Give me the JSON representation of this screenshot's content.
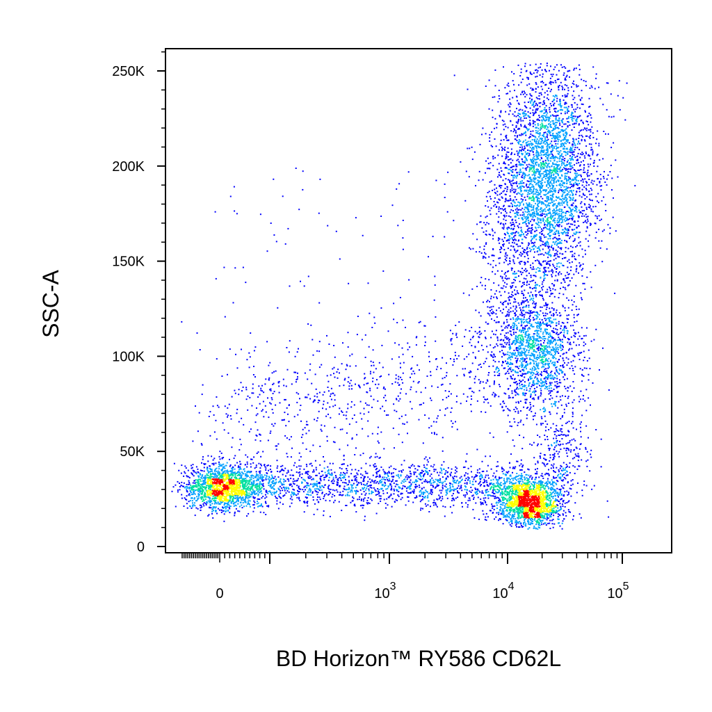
{
  "chart_data": {
    "type": "scatter",
    "subtype": "flow-cytometry-density-dot-plot",
    "xlabel": "BD Horizon™ RY586 CD62L",
    "ylabel": "SSC-A",
    "x_scale": "biexponential",
    "x_range": [
      -200,
      140000
    ],
    "y_range": [
      -5000,
      262144
    ],
    "x_ticks": [
      {
        "value": 0,
        "base": "0",
        "exp": ""
      },
      {
        "value": 1000,
        "base": "10",
        "exp": "3"
      },
      {
        "value": 10000,
        "base": "10",
        "exp": "4"
      },
      {
        "value": 100000,
        "base": "10",
        "exp": "5"
      }
    ],
    "y_ticks": [
      {
        "value": 0,
        "label": "0"
      },
      {
        "value": 50000,
        "label": "50K"
      },
      {
        "value": 100000,
        "label": "100K"
      },
      {
        "value": 150000,
        "label": "150K"
      },
      {
        "value": 200000,
        "label": "200K"
      },
      {
        "value": 250000,
        "label": "250K"
      }
    ],
    "populations": [
      {
        "description": "CD62L-negative low SSC",
        "x_center": 0,
        "y_center": 33000,
        "density": "high"
      },
      {
        "description": "low SSC band",
        "x_center": 1000,
        "y_center": 35000,
        "density": "medium"
      },
      {
        "description": "CD62L-positive low SSC",
        "x_center": 16000,
        "y_center": 23000,
        "density": "very high"
      },
      {
        "description": "CD62L-positive intermediate SSC",
        "x_center": 20000,
        "y_center": 100000,
        "density": "medium"
      },
      {
        "description": "CD62L-positive high SSC",
        "x_center": 22000,
        "y_center": 190000,
        "density": "very high"
      }
    ],
    "grid": false,
    "legend": "none",
    "colors": {
      "low": "#0000ff",
      "mid_low": "#00a0ff",
      "mid": "#00e0a0",
      "mid_high": "#ffff00",
      "high": "#ff0000",
      "axis": "#000000"
    }
  }
}
